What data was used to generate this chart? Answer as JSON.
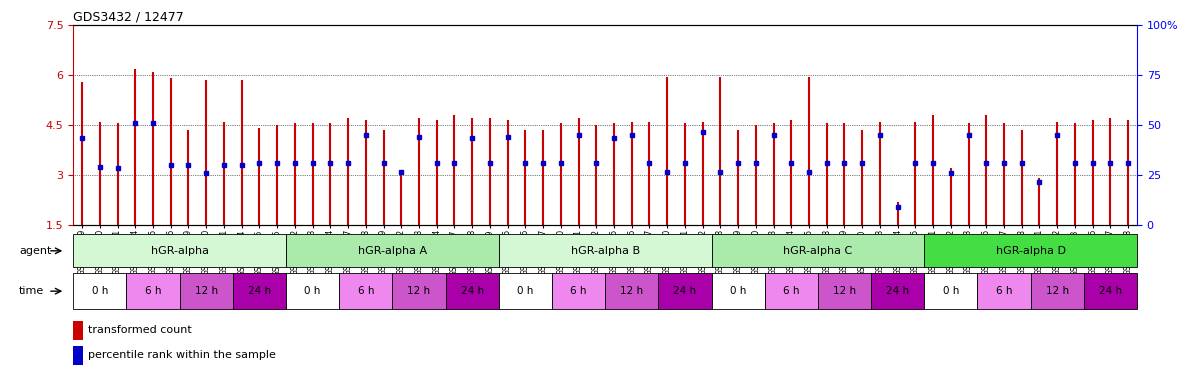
{
  "title": "GDS3432 / 12477",
  "ylim_left": [
    1.5,
    7.5
  ],
  "ylim_right": [
    0,
    100
  ],
  "yticks_left": [
    1.5,
    3.0,
    4.5,
    6.0,
    7.5
  ],
  "yticks_right": [
    0,
    25,
    50,
    75,
    100
  ],
  "ytick_labels_left": [
    "1.5",
    "3",
    "4.5",
    "6",
    "7.5"
  ],
  "ytick_labels_right": [
    "0",
    "25",
    "50",
    "75",
    "100%"
  ],
  "hlines": [
    3.0,
    4.5,
    6.0
  ],
  "bar_color": "#CC0000",
  "dot_color": "#0000CC",
  "background_color": "#ffffff",
  "samples": [
    "GSM154259",
    "GSM154260",
    "GSM154261",
    "GSM154274",
    "GSM154275",
    "GSM154276",
    "GSM154289",
    "GSM154290",
    "GSM154291",
    "GSM154304",
    "GSM154305",
    "GSM154306",
    "GSM154262",
    "GSM154263",
    "GSM154264",
    "GSM154277",
    "GSM154278",
    "GSM154279",
    "GSM154292",
    "GSM154293",
    "GSM154294",
    "GSM154307",
    "GSM154308",
    "GSM154309",
    "GSM154265",
    "GSM154266",
    "GSM154267",
    "GSM154280",
    "GSM154281",
    "GSM154282",
    "GSM154295",
    "GSM154296",
    "GSM154297",
    "GSM154310",
    "GSM154311",
    "GSM154312",
    "GSM154268",
    "GSM154269",
    "GSM154270",
    "GSM154283",
    "GSM154284",
    "GSM154285",
    "GSM154298",
    "GSM154299",
    "GSM154300",
    "GSM154313",
    "GSM154314",
    "GSM154315",
    "GSM154271",
    "GSM154272",
    "GSM154273",
    "GSM154286",
    "GSM154287",
    "GSM154288",
    "GSM154301",
    "GSM154302",
    "GSM154303",
    "GSM154316",
    "GSM154317",
    "GSM154318"
  ],
  "bar_heights": [
    5.8,
    4.6,
    4.55,
    6.2,
    6.1,
    5.9,
    4.35,
    5.85,
    4.6,
    5.85,
    4.4,
    4.5,
    4.55,
    4.55,
    4.55,
    4.7,
    4.65,
    4.35,
    3.05,
    4.7,
    4.65,
    4.8,
    4.7,
    4.7,
    4.65,
    4.35,
    4.35,
    4.55,
    4.7,
    4.5,
    4.55,
    4.6,
    4.6,
    5.95,
    4.55,
    4.6,
    5.95,
    4.35,
    4.5,
    4.55,
    4.65,
    5.95,
    4.55,
    4.55,
    4.35,
    4.6,
    2.2,
    4.6,
    4.8,
    3.2,
    4.55,
    4.8,
    4.55,
    4.35,
    2.9,
    4.6,
    4.55,
    4.65,
    4.7,
    4.65
  ],
  "dot_heights": [
    4.1,
    3.25,
    3.2,
    4.55,
    4.55,
    3.3,
    3.3,
    3.05,
    3.3,
    3.3,
    3.35,
    3.35,
    3.35,
    3.35,
    3.35,
    3.35,
    4.2,
    3.35,
    3.1,
    4.15,
    3.35,
    3.35,
    4.1,
    3.35,
    4.15,
    3.35,
    3.35,
    3.35,
    4.2,
    3.35,
    4.1,
    4.2,
    3.35,
    3.1,
    3.35,
    4.3,
    3.1,
    3.35,
    3.35,
    4.2,
    3.35,
    3.1,
    3.35,
    3.35,
    3.35,
    4.2,
    2.05,
    3.35,
    3.35,
    3.05,
    4.2,
    3.35,
    3.35,
    3.35,
    2.8,
    4.2,
    3.35,
    3.35,
    3.35,
    3.35
  ],
  "agents": [
    {
      "label": "hGR-alpha",
      "start": 0,
      "end": 12,
      "color": "#d4f7d4"
    },
    {
      "label": "hGR-alpha A",
      "start": 12,
      "end": 24,
      "color": "#aaeaaa"
    },
    {
      "label": "hGR-alpha B",
      "start": 24,
      "end": 36,
      "color": "#d4f7d4"
    },
    {
      "label": "hGR-alpha C",
      "start": 36,
      "end": 48,
      "color": "#aaeaaa"
    },
    {
      "label": "hGR-alpha D",
      "start": 48,
      "end": 60,
      "color": "#44dd44"
    }
  ],
  "times": [
    {
      "label": "0 h",
      "color": "#ffffff"
    },
    {
      "label": "6 h",
      "color": "#ee88ee"
    },
    {
      "label": "12 h",
      "color": "#cc55cc"
    },
    {
      "label": "24 h",
      "color": "#aa00aa"
    }
  ],
  "bars_per_time": 3,
  "legend_items": [
    {
      "label": "transformed count",
      "color": "#CC0000"
    },
    {
      "label": "percentile rank within the sample",
      "color": "#0000CC"
    }
  ]
}
